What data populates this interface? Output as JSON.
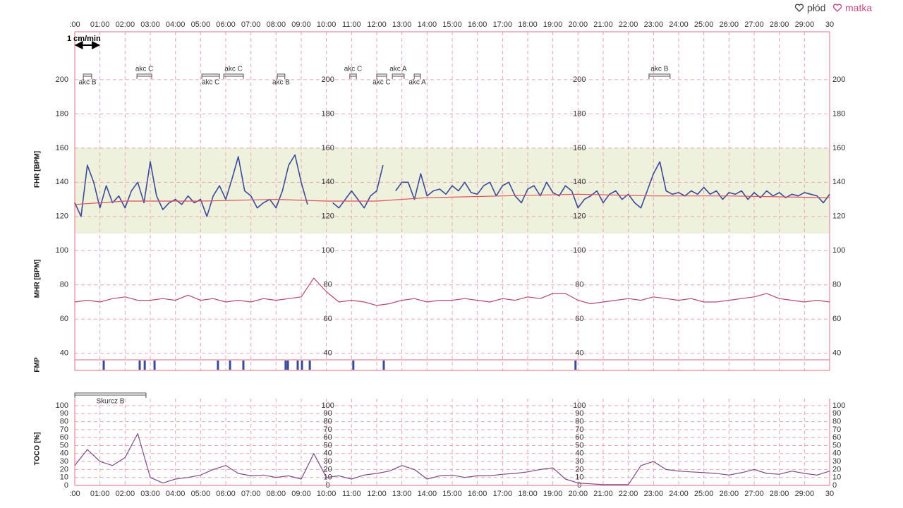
{
  "chart_data": {
    "type": "ctg",
    "scale_label": "1 cm/min",
    "panel_labels": [
      "FHR [BPM]",
      "MHR [BPM]",
      "FMP",
      "TOCO [%]"
    ],
    "xlim": [
      0,
      30
    ],
    "xticks": [
      {
        "value": 0,
        "label": ":00"
      },
      {
        "value": 1,
        "label": "01:00"
      },
      {
        "value": 2,
        "label": "02:00"
      },
      {
        "value": 3,
        "label": "03:00"
      },
      {
        "value": 4,
        "label": "04:00"
      },
      {
        "value": 5,
        "label": "05:00"
      },
      {
        "value": 6,
        "label": "06:00"
      },
      {
        "value": 7,
        "label": "07:00"
      },
      {
        "value": 8,
        "label": "08:00"
      },
      {
        "value": 9,
        "label": "09:00"
      },
      {
        "value": 10,
        "label": "10:00"
      },
      {
        "value": 11,
        "label": "11:00"
      },
      {
        "value": 12,
        "label": "12:00"
      },
      {
        "value": 13,
        "label": "13:00"
      },
      {
        "value": 14,
        "label": "14:00"
      },
      {
        "value": 15,
        "label": "15:00"
      },
      {
        "value": 16,
        "label": "16:00"
      },
      {
        "value": 17,
        "label": "17:00"
      },
      {
        "value": 18,
        "label": "18:00"
      },
      {
        "value": 19,
        "label": "19:00"
      },
      {
        "value": 20,
        "label": "20:00"
      },
      {
        "value": 21,
        "label": "21:00"
      },
      {
        "value": 22,
        "label": "22:00"
      },
      {
        "value": 23,
        "label": "23:00"
      },
      {
        "value": 24,
        "label": "24:00"
      },
      {
        "value": 25,
        "label": "25:00"
      },
      {
        "value": 26,
        "label": "26:00"
      },
      {
        "value": 27,
        "label": "27:00"
      },
      {
        "value": 28,
        "label": "28:00"
      },
      {
        "value": 29,
        "label": "29:00"
      },
      {
        "value": 30,
        "label": "30"
      }
    ],
    "ylim": [
      30,
      228
    ],
    "yticks": [
      40,
      60,
      80,
      100,
      120,
      140,
      160,
      180,
      200
    ],
    "y2lim": [
      0,
      100
    ],
    "y2ticks": [
      0,
      10,
      20,
      30,
      40,
      50,
      60,
      70,
      80,
      90,
      100
    ],
    "normal_band": [
      110,
      160
    ],
    "normal_band_color": "#eef2dc",
    "grid": true,
    "x": [
      0,
      0.25,
      0.5,
      0.75,
      1,
      1.25,
      1.5,
      1.75,
      2,
      2.25,
      2.5,
      2.75,
      3,
      3.25,
      3.5,
      3.75,
      4,
      4.25,
      4.5,
      4.75,
      5,
      5.25,
      5.5,
      5.75,
      6,
      6.25,
      6.5,
      6.75,
      7,
      7.25,
      7.5,
      7.75,
      8,
      8.25,
      8.5,
      8.75,
      9,
      9.25,
      9.5,
      9.75,
      10,
      10.25,
      10.5,
      10.75,
      11,
      11.25,
      11.5,
      11.75,
      12,
      12.25,
      12.5,
      12.75,
      13,
      13.25,
      13.5,
      13.75,
      14,
      14.25,
      14.5,
      14.75,
      15,
      15.25,
      15.5,
      15.75,
      16,
      16.25,
      16.5,
      16.75,
      17,
      17.25,
      17.5,
      17.75,
      18,
      18.25,
      18.5,
      18.75,
      19,
      19.25,
      19.5,
      19.75,
      20,
      20.25,
      20.5,
      20.75,
      21,
      21.25,
      21.5,
      21.75,
      22,
      22.25,
      22.5,
      22.75,
      23,
      23.25,
      23.5,
      23.75,
      24,
      24.25,
      24.5,
      24.75,
      25,
      25.25,
      25.5,
      25.75,
      26,
      26.25,
      26.5,
      26.75,
      27,
      27.25,
      27.5,
      27.75,
      28,
      28.25,
      28.5,
      28.75,
      29,
      29.25,
      29.5,
      29.75,
      30
    ],
    "series": [
      {
        "name": "płód",
        "color": "#3b4a9b",
        "values": [
          128,
          120,
          150,
          140,
          125,
          138,
          128,
          132,
          125,
          135,
          140,
          128,
          152,
          132,
          124,
          128,
          130,
          127,
          132,
          128,
          130,
          120,
          132,
          138,
          130,
          142,
          155,
          135,
          132,
          125,
          128,
          130,
          125,
          135,
          150,
          156,
          140,
          127,
          null,
          null,
          null,
          128,
          125,
          130,
          135,
          130,
          125,
          132,
          135,
          150,
          null,
          135,
          140,
          140,
          130,
          145,
          132,
          135,
          136,
          133,
          138,
          135,
          140,
          134,
          133,
          138,
          140,
          132,
          138,
          140,
          132,
          128,
          136,
          138,
          132,
          140,
          134,
          132,
          138,
          135,
          125,
          130,
          132,
          135,
          128,
          133,
          135,
          130,
          133,
          128,
          125,
          135,
          145,
          152,
          135,
          133,
          134,
          132,
          135,
          133,
          137,
          133,
          135,
          130,
          134,
          133,
          135,
          130,
          134,
          131,
          135,
          132,
          134,
          131,
          133,
          132,
          134,
          133,
          132,
          128,
          133
        ]
      },
      {
        "color": "#e0505a",
        "x": [
          0,
          2,
          5,
          8,
          10,
          12,
          14,
          17,
          20,
          23,
          26,
          30
        ],
        "values": [
          127,
          129,
          129,
          130,
          129,
          129,
          131,
          132,
          133,
          132,
          132,
          131
        ]
      },
      {
        "name": "matka",
        "color": "#b4486e",
        "x": [
          0,
          0.5,
          1,
          1.5,
          2,
          2.5,
          3,
          3.5,
          4,
          4.5,
          5,
          5.5,
          6,
          6.5,
          7,
          7.5,
          8,
          8.5,
          9,
          9.5,
          10,
          10.5,
          11,
          11.5,
          12,
          12.5,
          13,
          13.5,
          14,
          14.5,
          15,
          15.5,
          16,
          16.5,
          17,
          17.5,
          18,
          18.5,
          19,
          19.5,
          20,
          20.5,
          21,
          21.5,
          22,
          22.5,
          23,
          23.5,
          24,
          24.5,
          25,
          25.5,
          26,
          26.5,
          27,
          27.5,
          28,
          28.5,
          29,
          29.5,
          30
        ],
        "values": [
          70,
          71,
          70,
          72,
          73,
          71,
          71,
          72,
          71,
          74,
          71,
          72,
          70,
          71,
          70,
          72,
          71,
          72,
          73,
          84,
          76,
          70,
          71,
          70,
          68,
          69,
          71,
          72,
          70,
          71,
          71,
          72,
          71,
          70,
          72,
          71,
          73,
          72,
          75,
          75,
          71,
          69,
          70,
          71,
          72,
          71,
          73,
          72,
          71,
          72,
          70,
          70,
          71,
          72,
          73,
          75,
          72,
          71,
          70,
          71,
          70
        ]
      },
      {
        "color": "#7b4b8c",
        "axis": "y2",
        "x": [
          0,
          0.5,
          1,
          1.5,
          2,
          2.5,
          3,
          3.5,
          4,
          4.5,
          5,
          5.5,
          6,
          6.5,
          7,
          7.5,
          8,
          8.5,
          9,
          9.5,
          10,
          10.5,
          11,
          11.5,
          12,
          12.5,
          13,
          13.5,
          14,
          14.5,
          15,
          15.5,
          16,
          16.5,
          17,
          17.5,
          18,
          18.5,
          19,
          19.5,
          20,
          20.5,
          21,
          21.5,
          22,
          22.5,
          23,
          23.5,
          24,
          24.5,
          25,
          25.5,
          26,
          26.5,
          27,
          27.5,
          28,
          28.5,
          29,
          29.5,
          30
        ],
        "values": [
          25,
          45,
          30,
          25,
          35,
          65,
          10,
          3,
          8,
          10,
          13,
          20,
          25,
          15,
          12,
          13,
          10,
          12,
          8,
          40,
          10,
          12,
          8,
          13,
          15,
          18,
          25,
          20,
          8,
          12,
          13,
          10,
          12,
          12,
          14,
          15,
          17,
          20,
          22,
          8,
          3,
          2,
          1,
          1,
          1,
          25,
          30,
          20,
          18,
          17,
          16,
          15,
          13,
          16,
          20,
          15,
          14,
          18,
          15,
          13,
          18
        ]
      }
    ],
    "fmp_color": "#3b4a9b",
    "fmp_x": [
      1.15,
      2.58,
      2.78,
      3.17,
      5.69,
      6.17,
      6.7,
      8.38,
      8.47,
      8.86,
      9.03,
      9.34,
      11.07,
      12.28,
      19.9
    ],
    "annotations": [
      {
        "text": "akc B",
        "x": [
          0.34,
          0.67
        ],
        "position": "below"
      },
      {
        "text": "akc C",
        "x": [
          2.47,
          3.06
        ],
        "position": "above"
      },
      {
        "text": "akc C",
        "x": [
          5.05,
          5.75
        ],
        "position": "below"
      },
      {
        "text": "akc C",
        "x": [
          5.92,
          6.7
        ],
        "position": "above"
      },
      {
        "text": "akc B",
        "x": [
          8.05,
          8.35
        ],
        "position": "below"
      },
      {
        "text": "akc C",
        "x": [
          10.93,
          11.19
        ],
        "position": "above"
      },
      {
        "text": "akc C",
        "x": [
          12.0,
          12.39
        ],
        "position": "below"
      },
      {
        "text": "akc A",
        "x": [
          12.62,
          13.09
        ],
        "position": "above"
      },
      {
        "text": "akc A",
        "x": [
          13.49,
          13.74
        ],
        "position": "below"
      },
      {
        "text": "akc B",
        "x": [
          22.82,
          23.66
        ],
        "position": "above"
      },
      {
        "text": "Skurcz B",
        "x": [
          0,
          2.83
        ],
        "position": "below",
        "axis": "y2"
      }
    ]
  }
}
